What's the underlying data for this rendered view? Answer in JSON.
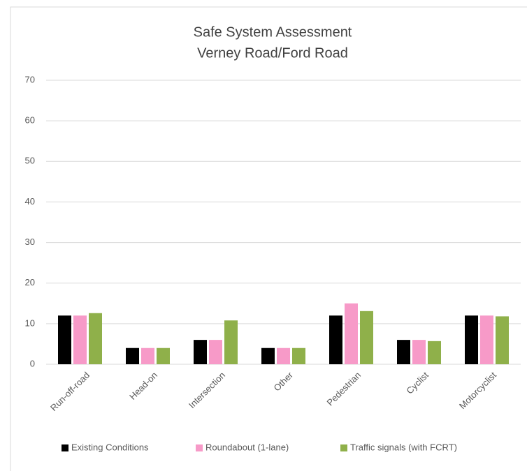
{
  "chart_data": {
    "type": "bar",
    "title": "Safe System Assessment",
    "subtitle": "Verney Road/Ford Road",
    "categories": [
      "Run-off-road",
      "Head-on",
      "Intersection",
      "Other",
      "Pedestrian",
      "Cyclist",
      "Motorcyclist"
    ],
    "series": [
      {
        "name": "Existing Conditions",
        "color": "#000000",
        "values": [
          12,
          4,
          6,
          4,
          12,
          6,
          12
        ]
      },
      {
        "name": "Roundabout (1-lane)",
        "color": "#f79ac8",
        "values": [
          12,
          4,
          6,
          4,
          15,
          6,
          12
        ]
      },
      {
        "name": "Traffic signals (with FCRT)",
        "color": "#8fb04a",
        "values": [
          12.6,
          4,
          10.8,
          4,
          13.1,
          5.7,
          11.8
        ]
      }
    ],
    "ylim": [
      0,
      70
    ],
    "yticks": [
      0,
      10,
      20,
      30,
      40,
      50,
      60,
      70
    ],
    "grid": true,
    "legend": "bottom"
  }
}
